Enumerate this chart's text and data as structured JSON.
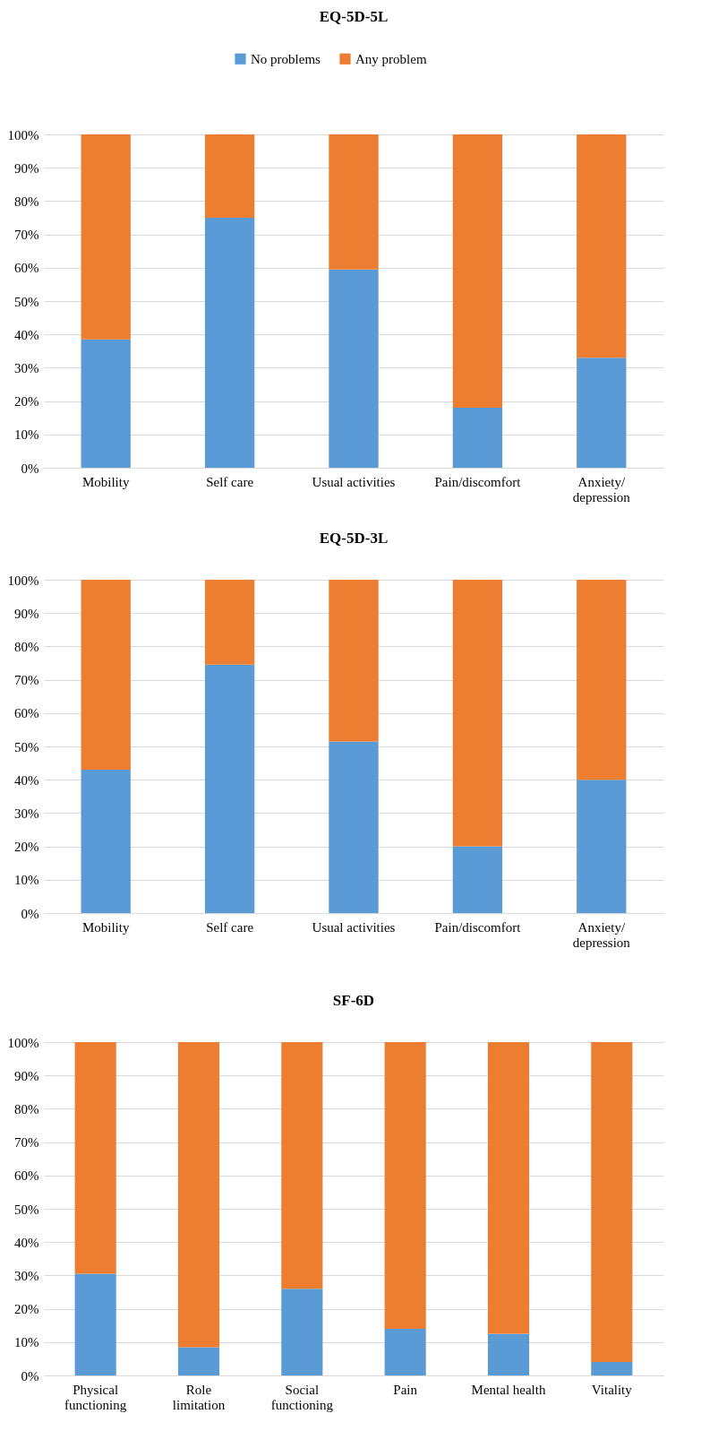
{
  "chart_data": [
    {
      "type": "bar",
      "title": "EQ-5D-5L",
      "stacked": true,
      "legend": "top",
      "grid": "y",
      "categories": [
        "Mobility",
        "Self care",
        "Usual activities",
        "Pain/discomfort",
        "Anxiety/\ndepression"
      ],
      "series": [
        {
          "name": "No problems",
          "color": "#5b9bd5",
          "values": [
            38.5,
            75,
            59.5,
            18,
            33
          ]
        },
        {
          "name": "Any problem",
          "color": "#ed7d31",
          "values": [
            61.5,
            25,
            40.5,
            82,
            67
          ]
        }
      ],
      "ylim": [
        0,
        100
      ],
      "yticks": [
        {
          "value": 0,
          "label": "0%"
        },
        {
          "value": 10,
          "label": "10%"
        },
        {
          "value": 20,
          "label": "20%"
        },
        {
          "value": 30,
          "label": "30%"
        },
        {
          "value": 40,
          "label": "40%"
        },
        {
          "value": 50,
          "label": "50%"
        },
        {
          "value": 60,
          "label": "60%"
        },
        {
          "value": 70,
          "label": "70%"
        },
        {
          "value": 80,
          "label": "80%"
        },
        {
          "value": 90,
          "label": "90%"
        },
        {
          "value": 100,
          "label": "100%"
        }
      ]
    },
    {
      "type": "bar",
      "title": "EQ-5D-3L",
      "stacked": true,
      "grid": "y",
      "categories": [
        "Mobility",
        "Self care",
        "Usual activities",
        "Pain/discomfort",
        "Anxiety/\ndepression"
      ],
      "series": [
        {
          "color": "#5b9bd5",
          "values": [
            43,
            74.5,
            51.5,
            20,
            40
          ]
        },
        {
          "color": "#ed7d31",
          "values": [
            57,
            25.5,
            48.5,
            80,
            60
          ]
        }
      ],
      "ylim": [
        0,
        100
      ],
      "yticks": [
        {
          "value": 0,
          "label": "0%"
        },
        {
          "value": 10,
          "label": "10%"
        },
        {
          "value": 20,
          "label": "20%"
        },
        {
          "value": 30,
          "label": "30%"
        },
        {
          "value": 40,
          "label": "40%"
        },
        {
          "value": 50,
          "label": "50%"
        },
        {
          "value": 60,
          "label": "60%"
        },
        {
          "value": 70,
          "label": "70%"
        },
        {
          "value": 80,
          "label": "80%"
        },
        {
          "value": 90,
          "label": "90%"
        },
        {
          "value": 100,
          "label": "100%"
        }
      ]
    },
    {
      "type": "bar",
      "title": "SF-6D",
      "stacked": true,
      "grid": "y",
      "categories": [
        "Physical\nfunctioning",
        "Role\nlimitation",
        "Social\nfunctioning",
        "Pain",
        "Mental health",
        "Vitality"
      ],
      "series": [
        {
          "color": "#5b9bd5",
          "values": [
            30.5,
            8.5,
            26,
            14,
            12.5,
            4
          ]
        },
        {
          "color": "#ed7d31",
          "values": [
            69.5,
            91.5,
            74,
            86,
            87.5,
            96
          ]
        }
      ],
      "ylim": [
        0,
        100
      ],
      "yticks": [
        {
          "value": 0,
          "label": "0%"
        },
        {
          "value": 10,
          "label": "10%"
        },
        {
          "value": 20,
          "label": "20%"
        },
        {
          "value": 30,
          "label": "30%"
        },
        {
          "value": 40,
          "label": "40%"
        },
        {
          "value": 50,
          "label": "50%"
        },
        {
          "value": 60,
          "label": "60%"
        },
        {
          "value": 70,
          "label": "70%"
        },
        {
          "value": 80,
          "label": "80%"
        },
        {
          "value": 90,
          "label": "90%"
        },
        {
          "value": 100,
          "label": "100%"
        }
      ]
    }
  ]
}
